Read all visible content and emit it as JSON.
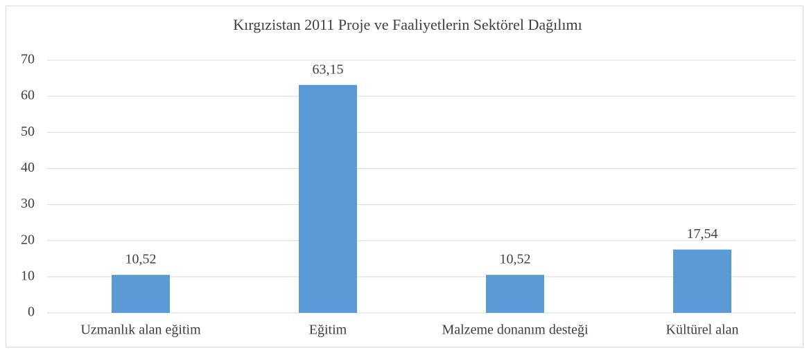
{
  "chart_data": {
    "type": "bar",
    "title": "Kırgızistan 2011 Proje ve Faaliyetlerin Sektörel Dağılımı",
    "categories": [
      "Uzmanlık alan eğitim",
      "Eğitim",
      "Malzeme donanım desteği",
      "Kültürel alan"
    ],
    "values": [
      10.52,
      63.15,
      10.52,
      17.54
    ],
    "value_labels": [
      "10,52",
      "63,15",
      "10,52",
      "17,54"
    ],
    "color": "#5b9bd5",
    "ylim": [
      0,
      70
    ],
    "yticks": [
      0,
      10,
      20,
      30,
      40,
      50,
      60,
      70
    ],
    "grid": true
  }
}
